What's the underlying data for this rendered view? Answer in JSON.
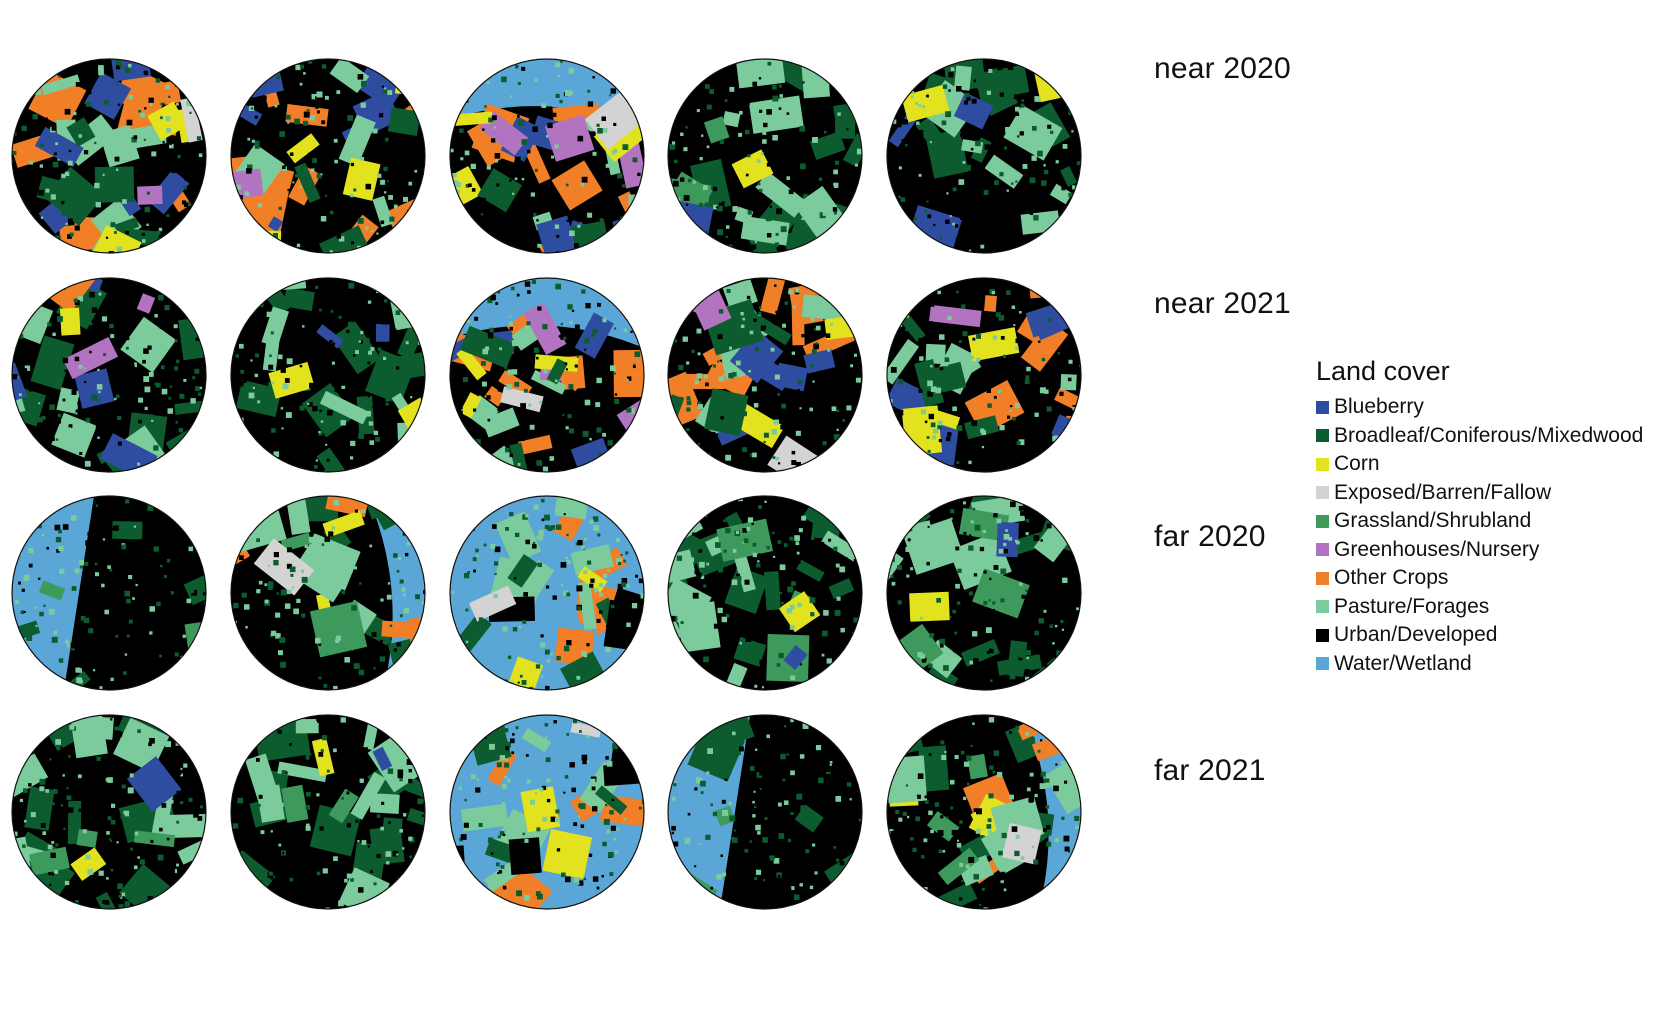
{
  "figure": {
    "rows": [
      {
        "label": "near 2020"
      },
      {
        "label": "near 2021"
      },
      {
        "label": "far 2020"
      },
      {
        "label": "far 2021"
      }
    ],
    "maps": [
      [
        "orange-mix",
        "orange-heavy",
        "water-top",
        "green-forest",
        "pasture-blue"
      ],
      [
        "dark-mix",
        "green-corn",
        "water-top",
        "mix-yellow",
        "orange-heavy"
      ],
      [
        "water-left",
        "water-right-orange",
        "water-band",
        "green-forest",
        "green-pasture"
      ],
      [
        "green-pasture",
        "green-forest",
        "water-band",
        "water-left",
        "water-right-orange"
      ]
    ]
  },
  "legend": {
    "title": "Land cover",
    "items": [
      {
        "label": "Blueberry",
        "color": "#2E4DA0"
      },
      {
        "label": "Broadleaf/Coniferous/Mixedwood",
        "color": "#0D5C2F"
      },
      {
        "label": "Corn",
        "color": "#E2E21E"
      },
      {
        "label": "Exposed/Barren/Fallow",
        "color": "#D3D3D3"
      },
      {
        "label": "Grassland/Shrubland",
        "color": "#3D9A5C"
      },
      {
        "label": "Greenhouses/Nursery",
        "color": "#B274C0"
      },
      {
        "label": "Other Crops",
        "color": "#F07F28"
      },
      {
        "label": "Pasture/Forages",
        "color": "#7CCB9C"
      },
      {
        "label": "Urban/Developed",
        "color": "#000000"
      },
      {
        "label": "Water/Wetland",
        "color": "#5AA6D6"
      }
    ]
  }
}
